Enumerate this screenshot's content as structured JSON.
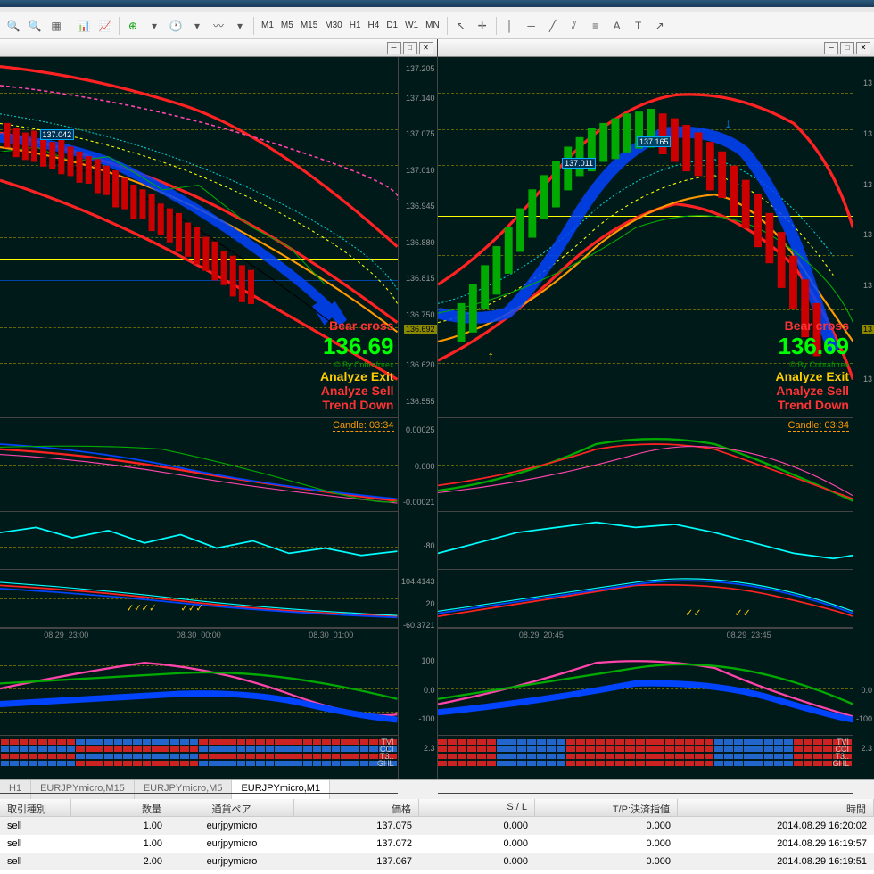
{
  "toolbar": {
    "timeframes": [
      "M1",
      "M5",
      "M15",
      "M30",
      "H1",
      "H4",
      "D1",
      "W1",
      "MN"
    ]
  },
  "charts": [
    {
      "id": "left",
      "price_labels": [
        "137.205",
        "137.140",
        "137.075",
        "137.010",
        "136.945",
        "136.880",
        "136.815",
        "136.750",
        "136.620",
        "136.555"
      ],
      "current_price": "136.692",
      "price_box": "137.042",
      "big_price": "136.69",
      "signals": [
        {
          "text": "Bear cross",
          "color": "#ff3333"
        },
        {
          "text": "Analyze Exit",
          "color": "#ffcc00"
        },
        {
          "text": "Analyze Sell",
          "color": "#ff3333"
        },
        {
          "text": "Trend Down",
          "color": "#ff3333"
        }
      ],
      "candle_timer": "Candle:  03:34",
      "sub1_labels": [
        "0.00025",
        "0.000",
        "-0.00021"
      ],
      "sub2_labels": [
        "-80"
      ],
      "sub3_labels": [
        "104.4143",
        "20",
        "-60.3721"
      ],
      "sub4_labels": [
        "100",
        "0.0",
        "-100"
      ],
      "sub5_labels": [
        "2.3"
      ],
      "time_labels": [
        "08.29_23:00",
        "08.30_00:00",
        "08.30_01:00"
      ],
      "ind_names": [
        "TVI",
        "CCI",
        "T3..",
        "GHL"
      ]
    },
    {
      "id": "right",
      "price_labels": [
        "13",
        "13",
        "13",
        "13",
        "13",
        "13",
        "13",
        "13",
        "13",
        "13"
      ],
      "current_price": "13",
      "price_boxes": [
        "137.011",
        "137.165"
      ],
      "big_price": "136.69",
      "signals": [
        {
          "text": "Bear cross",
          "color": "#ff3333"
        },
        {
          "text": "Analyze Exit",
          "color": "#ffcc00"
        },
        {
          "text": "Analyze Sell",
          "color": "#ff3333"
        },
        {
          "text": "Trend Down",
          "color": "#ff3333"
        }
      ],
      "candle_timer": "Candle:  03:34",
      "sub4_labels": [
        "0.0",
        "-100"
      ],
      "sub5_labels": [
        "2.3"
      ],
      "time_labels": [
        "08.29_20:45",
        "08.29_23:45"
      ],
      "ind_names": [
        "TVI",
        "CCI",
        "T3..",
        "GHL"
      ]
    }
  ],
  "tabs": [
    {
      "label": "H1",
      "active": false
    },
    {
      "label": "EURJPYmicro,M15",
      "active": false
    },
    {
      "label": "EURJPYmicro,M5",
      "active": false
    },
    {
      "label": "EURJPYmicro,M1",
      "active": true
    }
  ],
  "orders": {
    "headers": [
      "取引種別",
      "数量",
      "通貨ペア",
      "価格",
      "S / L",
      "T/P:決済指値",
      "時間"
    ],
    "rows": [
      [
        "sell",
        "1.00",
        "eurjpymicro",
        "137.075",
        "0.000",
        "0.000",
        "2014.08.29 16:20:02"
      ],
      [
        "sell",
        "1.00",
        "eurjpymicro",
        "137.072",
        "0.000",
        "0.000",
        "2014.08.29 16:19:57"
      ],
      [
        "sell",
        "2.00",
        "eurjpymicro",
        "137.067",
        "0.000",
        "0.000",
        "2014.08.29 16:19:51"
      ]
    ]
  },
  "colors": {
    "bg": "#001a1a",
    "red": "#ff2222",
    "green": "#00ff00",
    "blue": "#0044ff",
    "orange": "#ff9900",
    "yellow": "#ffff00",
    "cyan": "#00ffff",
    "magenta": "#ff44aa"
  }
}
